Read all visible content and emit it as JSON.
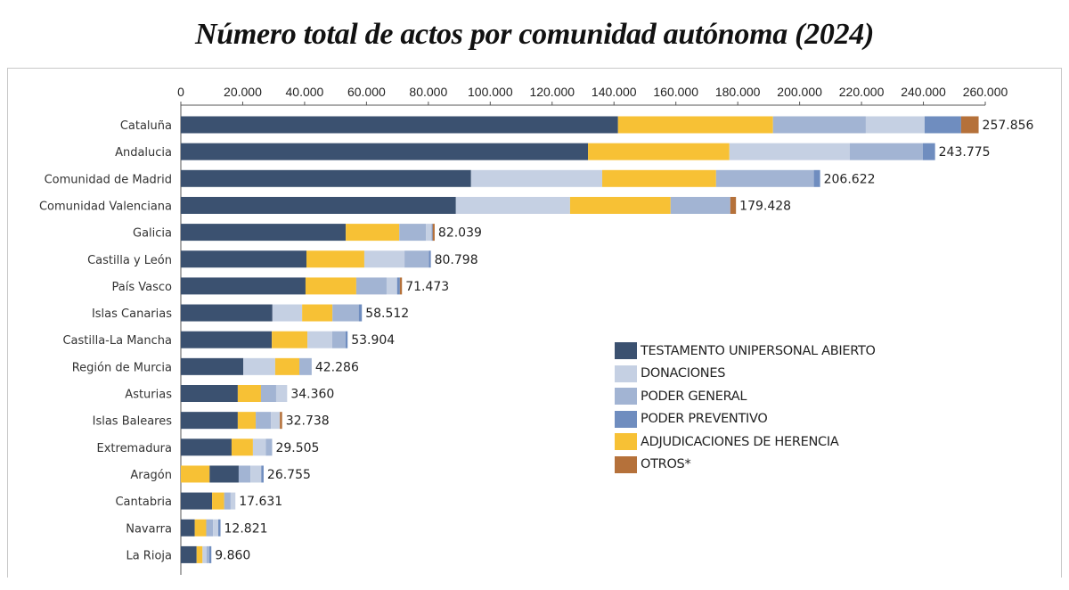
{
  "chart_data": {
    "type": "bar",
    "orientation": "horizontal",
    "stacked": true,
    "title": "Número total de actos por comunidad autónoma (2024)",
    "xlabel": "",
    "ylabel": "",
    "xlim": [
      0,
      260000
    ],
    "x_ticks": [
      "0",
      "20.000",
      "40.000",
      "60.000",
      "80.000",
      "100.000",
      "120.000",
      "140.000",
      "160.000",
      "180.000",
      "200.000",
      "220.000",
      "240.000",
      "260.000"
    ],
    "x_axis_position": "top",
    "grid": false,
    "legend_position": "center-right",
    "categories": [
      "Cataluña",
      "Andalucia",
      "Comunidad de Madrid",
      "Comunidad Valenciana",
      "Galicia",
      "Castilla y León",
      "País Vasco",
      "Islas Canarias",
      "Castilla-La Mancha",
      "Región de Murcia",
      "Asturias",
      "Islas Baleares",
      "Extremadura",
      "Aragón",
      "Cantabria",
      "Navarra",
      "La Rioja"
    ],
    "totals": [
      257856,
      243775,
      206622,
      179428,
      82039,
      80798,
      71473,
      58512,
      53904,
      42286,
      34360,
      32738,
      29505,
      26755,
      17631,
      12821,
      9860
    ],
    "total_labels": [
      "257.856",
      "243.775",
      "206.622",
      "179.428",
      "82.039",
      "80.798",
      "71.473",
      "58.512",
      "53.904",
      "42.286",
      "34.360",
      "32.738",
      "29.505",
      "26.755",
      "17.631",
      "12.821",
      "9.860"
    ],
    "series": [
      {
        "key": "testamento",
        "name": "TESTAMENTO UNIPERSONAL ABIERTO",
        "color": "#3b5170"
      },
      {
        "key": "donaciones",
        "name": "DONACIONES",
        "color": "#c5d0e3"
      },
      {
        "key": "poder_general",
        "name": "PODER GENERAL",
        "color": "#a2b4d3"
      },
      {
        "key": "poder_preventivo",
        "name": "PODER PREVENTIVO",
        "color": "#6f8dbf"
      },
      {
        "key": "adjudicaciones",
        "name": "ADJUDICACIONES DE HERENCIA",
        "color": "#f7c135"
      },
      {
        "key": "otros",
        "name": "OTROS*",
        "color": "#b5713a"
      }
    ],
    "segments": [
      [
        [
          "testamento",
          141300
        ],
        [
          "adjudicaciones",
          50100
        ],
        [
          "poder_general",
          30000
        ],
        [
          "donaciones",
          19000
        ],
        [
          "poder_preventivo",
          11800
        ],
        [
          "otros",
          5656
        ]
      ],
      [
        [
          "testamento",
          131600
        ],
        [
          "adjudicaciones",
          45700
        ],
        [
          "donaciones",
          38900
        ],
        [
          "poder_general",
          23600
        ],
        [
          "poder_preventivo",
          3975
        ]
      ],
      [
        [
          "testamento",
          93800
        ],
        [
          "donaciones",
          42400
        ],
        [
          "adjudicaciones",
          36800
        ],
        [
          "poder_general",
          31600
        ],
        [
          "poder_preventivo",
          2022
        ]
      ],
      [
        [
          "testamento",
          88900
        ],
        [
          "donaciones",
          36900
        ],
        [
          "adjudicaciones",
          32500
        ],
        [
          "poder_general",
          19300
        ],
        [
          "otros",
          1828
        ]
      ],
      [
        [
          "testamento",
          53300
        ],
        [
          "adjudicaciones",
          17300
        ],
        [
          "poder_general",
          8600
        ],
        [
          "donaciones",
          1900
        ],
        [
          "poder_preventivo",
          300
        ],
        [
          "otros",
          639
        ]
      ],
      [
        [
          "testamento",
          40600
        ],
        [
          "adjudicaciones",
          18700
        ],
        [
          "donaciones",
          13000
        ],
        [
          "poder_general",
          7900
        ],
        [
          "poder_preventivo",
          598
        ]
      ],
      [
        [
          "testamento",
          40300
        ],
        [
          "adjudicaciones",
          16400
        ],
        [
          "poder_general",
          9800
        ],
        [
          "donaciones",
          3400
        ],
        [
          "poder_preventivo",
          900
        ],
        [
          "otros",
          673
        ]
      ],
      [
        [
          "testamento",
          29600
        ],
        [
          "donaciones",
          9600
        ],
        [
          "adjudicaciones",
          9800
        ],
        [
          "poder_general",
          8500
        ],
        [
          "poder_preventivo",
          1012
        ]
      ],
      [
        [
          "testamento",
          29400
        ],
        [
          "adjudicaciones",
          11500
        ],
        [
          "donaciones",
          8000
        ],
        [
          "poder_general",
          4300
        ],
        [
          "poder_preventivo",
          704
        ]
      ],
      [
        [
          "testamento",
          20200
        ],
        [
          "donaciones",
          10300
        ],
        [
          "adjudicaciones",
          7800
        ],
        [
          "poder_general",
          3986
        ]
      ],
      [
        [
          "testamento",
          18400
        ],
        [
          "adjudicaciones",
          7500
        ],
        [
          "poder_general",
          4900
        ],
        [
          "donaciones",
          3560
        ]
      ],
      [
        [
          "testamento",
          18400
        ],
        [
          "adjudicaciones",
          5800
        ],
        [
          "poder_general",
          4900
        ],
        [
          "donaciones",
          2900
        ],
        [
          "otros",
          738
        ]
      ],
      [
        [
          "testamento",
          16400
        ],
        [
          "adjudicaciones",
          6900
        ],
        [
          "donaciones",
          4200
        ],
        [
          "poder_general",
          2005
        ]
      ],
      [
        [
          "adjudicaciones",
          9300
        ],
        [
          "testamento",
          9400
        ],
        [
          "poder_general",
          3800
        ],
        [
          "donaciones",
          3500
        ],
        [
          "poder_preventivo",
          755
        ]
      ],
      [
        [
          "testamento",
          10100
        ],
        [
          "adjudicaciones",
          3900
        ],
        [
          "poder_general",
          2100
        ],
        [
          "donaciones",
          1531
        ]
      ],
      [
        [
          "testamento",
          4500
        ],
        [
          "adjudicaciones",
          3700
        ],
        [
          "poder_general",
          2200
        ],
        [
          "donaciones",
          1700
        ],
        [
          "poder_preventivo",
          721
        ]
      ],
      [
        [
          "testamento",
          5100
        ],
        [
          "adjudicaciones",
          1900
        ],
        [
          "donaciones",
          1300
        ],
        [
          "poder_general",
          900
        ],
        [
          "poder_preventivo",
          660
        ]
      ]
    ]
  }
}
